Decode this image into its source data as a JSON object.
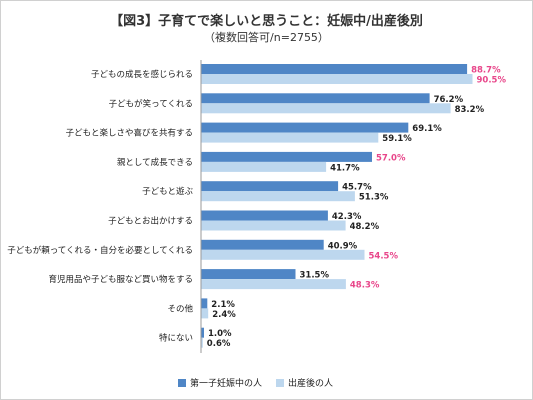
{
  "title": "【図3】子育てで楽しいと思うこと：妊娠中/出産後別",
  "subtitle": "（複数回答可/n=2755）",
  "colors": {
    "series1": "#4f86c6",
    "series2": "#bdd7ee",
    "highlight": "#e8468a",
    "text": "#222222",
    "axis": "#9a9a9a"
  },
  "chart_data": {
    "type": "bar",
    "orientation": "horizontal",
    "categories": [
      "子どもの成長を感じられる",
      "子どもが笑ってくれる",
      "子どもと楽しさや喜びを共有する",
      "親として成長できる",
      "子どもと遊ぶ",
      "子どもとお出かけする",
      "子どもが頼ってくれる・自分を必要としてくれる",
      "育児用品や子ども服など買い物をする",
      "その他",
      "特にない"
    ],
    "series": [
      {
        "name": "第一子妊娠中の人",
        "values": [
          88.7,
          76.2,
          69.1,
          57.0,
          45.7,
          42.3,
          40.9,
          31.5,
          2.1,
          1.0
        ],
        "labels": [
          "88.7%",
          "76.2%",
          "69.1%",
          "57.0%",
          "45.7%",
          "42.3%",
          "40.9%",
          "31.5%",
          "2.1%",
          "1.0%"
        ],
        "highlight": [
          true,
          false,
          false,
          true,
          false,
          false,
          false,
          false,
          false,
          false
        ]
      },
      {
        "name": "出産後の人",
        "values": [
          90.5,
          83.2,
          59.1,
          41.7,
          51.3,
          48.2,
          54.5,
          48.3,
          2.4,
          0.6
        ],
        "labels": [
          "90.5%",
          "83.2%",
          "59.1%",
          "41.7%",
          "51.3%",
          "48.2%",
          "54.5%",
          "48.3%",
          "2.4%",
          "0.6%"
        ],
        "highlight": [
          true,
          false,
          false,
          false,
          false,
          false,
          true,
          true,
          false,
          false
        ]
      }
    ],
    "xlim": [
      0,
      100
    ],
    "grid": false,
    "legend_position": "bottom"
  }
}
